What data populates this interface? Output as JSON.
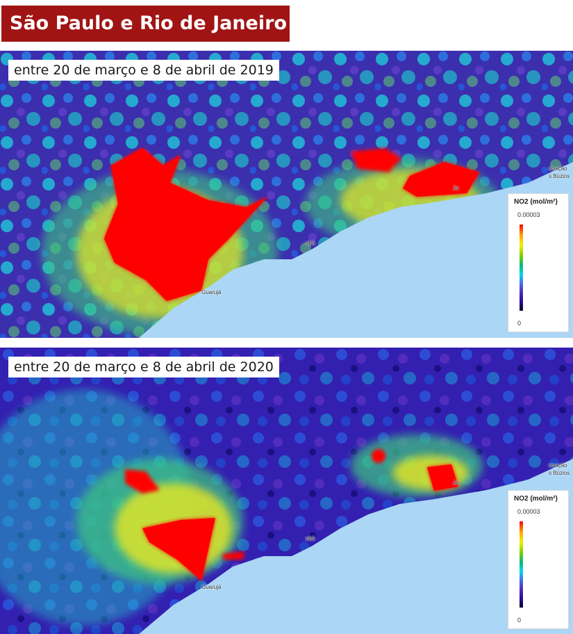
{
  "title": "São Paulo e Rio de Janeiro",
  "panels": [
    {
      "period": "entre 20 de março e 8 de abril de 2019",
      "legend": {
        "title": "NO2 (mol/m²)",
        "max": "0.00003",
        "min": "0"
      },
      "places": {
        "guaruja": "Guarujá",
        "jac": "Ja",
        "coast_a": "ubá",
        "buzios_1": "rmação",
        "buzios_2": "s Búzios"
      }
    },
    {
      "period": "entre 20 de março e 8 de abril de 2020",
      "legend": {
        "title": "NO2 (mol/m²)",
        "max": "0.00003",
        "min": "0"
      },
      "places": {
        "guaruja": "Guarujá",
        "jac": "Ja",
        "coast_a": "ubá",
        "buzios_1": "rmação",
        "buzios_2": "s Búzios"
      }
    }
  ],
  "colors": {
    "title_banner": "#a11414",
    "ocean": "#abd6f5",
    "scale": [
      "#ff0000",
      "#ffa000",
      "#f4f000",
      "#7ed000",
      "#00b880",
      "#00d8e8",
      "#4a70f0",
      "#5030c0",
      "#3010a0",
      "#000030"
    ]
  }
}
